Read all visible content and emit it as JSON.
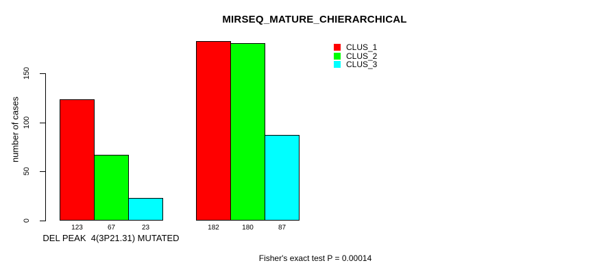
{
  "title": "MIRSEQ_MATURE_CHIERARCHICAL",
  "footer": "Fisher's exact test P = 0.00014",
  "y_axis": {
    "label": "number of cases",
    "ticks": [
      "0",
      "50",
      "100",
      "150"
    ]
  },
  "x_axis": {
    "group1_label": "DEL PEAK  4(3P21.31) MUTATED"
  },
  "legend": {
    "items": [
      {
        "label": "CLUS_1",
        "color": "#ff0000"
      },
      {
        "label": "CLUS_2",
        "color": "#00ff00"
      },
      {
        "label": "CLUS_3",
        "color": "#00ffff"
      }
    ]
  },
  "chart_data": {
    "type": "bar",
    "title": "MIRSEQ_MATURE_CHIERARCHICAL",
    "xlabel": "DEL PEAK  4(3P21.31) MUTATED",
    "ylabel": "number of cases",
    "ylim": [
      0,
      150
    ],
    "yticks": [
      0,
      50,
      100,
      150
    ],
    "categories": [
      "DEL PEAK  4(3P21.31) MUTATED",
      ""
    ],
    "series": [
      {
        "name": "CLUS_1",
        "color": "#ff0000",
        "values": [
          123,
          182
        ]
      },
      {
        "name": "CLUS_2",
        "color": "#00ff00",
        "values": [
          67,
          180
        ]
      },
      {
        "name": "CLUS_3",
        "color": "#00ffff",
        "values": [
          23,
          87
        ]
      }
    ],
    "bar_value_labels": true,
    "grid": false,
    "legend_position": "top-right",
    "annotation": "Fisher's exact test P = 0.00014"
  }
}
